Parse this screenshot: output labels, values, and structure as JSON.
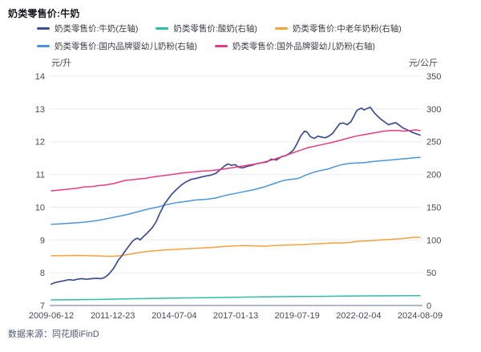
{
  "title": "奶类零售价:牛奶",
  "footer": {
    "text": "数据来源：同花顺iFinD"
  },
  "style": {
    "gridline": "#ebecf2",
    "axis_line": "#9ca1ad",
    "tick_text": "#474a58",
    "background": "#ffffff"
  },
  "chart_data": {
    "type": "line",
    "title": "奶类零售价:牛奶",
    "legend_position": "top",
    "grid": true,
    "x_axis": {
      "labels": [
        "2009-06-12",
        "2011-12-23",
        "2014-07-04",
        "2017-01-13",
        "2019-07-19",
        "2022-02-04",
        "2024-08-09"
      ],
      "min_year": 2009.45,
      "max_year": 2024.6
    },
    "y_left": {
      "unit": "元/升",
      "min": 7,
      "max": 14,
      "ticks": [
        14,
        13,
        12,
        11,
        10,
        9,
        8,
        7
      ]
    },
    "y_right": {
      "unit": "元/公斤",
      "min": 0,
      "max": 350,
      "ticks": [
        350,
        300,
        250,
        200,
        150,
        100,
        50,
        0
      ]
    },
    "series": [
      {
        "key": "milk",
        "name": "奶类零售价:牛奶(左轴)",
        "axis": "left",
        "color": "#3c4d94",
        "width": 1.7,
        "data": [
          [
            2009.45,
            7.65
          ],
          [
            2009.6,
            7.7
          ],
          [
            2009.8,
            7.73
          ],
          [
            2010,
            7.76
          ],
          [
            2010.2,
            7.79
          ],
          [
            2010.35,
            7.77
          ],
          [
            2010.5,
            7.8
          ],
          [
            2010.7,
            7.82
          ],
          [
            2010.9,
            7.8
          ],
          [
            2011.1,
            7.82
          ],
          [
            2011.3,
            7.83
          ],
          [
            2011.5,
            7.82
          ],
          [
            2011.65,
            7.86
          ],
          [
            2011.8,
            7.95
          ],
          [
            2012,
            8.12
          ],
          [
            2012.1,
            8.25
          ],
          [
            2012.2,
            8.38
          ],
          [
            2012.35,
            8.52
          ],
          [
            2012.5,
            8.68
          ],
          [
            2012.65,
            8.83
          ],
          [
            2012.8,
            8.97
          ],
          [
            2012.9,
            9.03
          ],
          [
            2013,
            9.05
          ],
          [
            2013.1,
            9.0
          ],
          [
            2013.2,
            9.08
          ],
          [
            2013.35,
            9.18
          ],
          [
            2013.5,
            9.3
          ],
          [
            2013.6,
            9.38
          ],
          [
            2013.75,
            9.55
          ],
          [
            2013.9,
            9.8
          ],
          [
            2014,
            9.95
          ],
          [
            2014.1,
            10.1
          ],
          [
            2014.25,
            10.25
          ],
          [
            2014.4,
            10.4
          ],
          [
            2014.6,
            10.55
          ],
          [
            2014.8,
            10.68
          ],
          [
            2015,
            10.78
          ],
          [
            2015.2,
            10.85
          ],
          [
            2015.4,
            10.88
          ],
          [
            2015.6,
            10.92
          ],
          [
            2015.8,
            10.95
          ],
          [
            2016,
            10.98
          ],
          [
            2016.2,
            11.03
          ],
          [
            2016.4,
            11.15
          ],
          [
            2016.55,
            11.25
          ],
          [
            2016.7,
            11.32
          ],
          [
            2016.85,
            11.28
          ],
          [
            2017,
            11.3
          ],
          [
            2017.15,
            11.22
          ],
          [
            2017.3,
            11.2
          ],
          [
            2017.5,
            11.25
          ],
          [
            2017.7,
            11.28
          ],
          [
            2017.9,
            11.33
          ],
          [
            2018.1,
            11.36
          ],
          [
            2018.3,
            11.38
          ],
          [
            2018.5,
            11.47
          ],
          [
            2018.7,
            11.44
          ],
          [
            2018.9,
            11.54
          ],
          [
            2019.1,
            11.58
          ],
          [
            2019.25,
            11.65
          ],
          [
            2019.4,
            11.75
          ],
          [
            2019.55,
            11.95
          ],
          [
            2019.7,
            12.18
          ],
          [
            2019.85,
            12.32
          ],
          [
            2019.95,
            12.3
          ],
          [
            2020.1,
            12.15
          ],
          [
            2020.25,
            12.1
          ],
          [
            2020.4,
            12.17
          ],
          [
            2020.55,
            12.14
          ],
          [
            2020.7,
            12.12
          ],
          [
            2020.85,
            12.17
          ],
          [
            2021,
            12.25
          ],
          [
            2021.15,
            12.4
          ],
          [
            2021.3,
            12.55
          ],
          [
            2021.45,
            12.57
          ],
          [
            2021.6,
            12.52
          ],
          [
            2021.75,
            12.6
          ],
          [
            2021.9,
            12.8
          ],
          [
            2022,
            12.95
          ],
          [
            2022.1,
            13.0
          ],
          [
            2022.2,
            13.02
          ],
          [
            2022.3,
            12.97
          ],
          [
            2022.45,
            13.02
          ],
          [
            2022.55,
            13.05
          ],
          [
            2022.7,
            12.9
          ],
          [
            2022.85,
            12.78
          ],
          [
            2023,
            12.68
          ],
          [
            2023.15,
            12.6
          ],
          [
            2023.3,
            12.52
          ],
          [
            2023.45,
            12.55
          ],
          [
            2023.6,
            12.58
          ],
          [
            2023.75,
            12.5
          ],
          [
            2023.9,
            12.42
          ],
          [
            2024.1,
            12.35
          ],
          [
            2024.3,
            12.28
          ],
          [
            2024.45,
            12.24
          ],
          [
            2024.6,
            12.2
          ]
        ]
      },
      {
        "key": "yogurt",
        "name": "奶类零售价:酸奶(右轴)",
        "axis": "right",
        "color": "#2ebfa5",
        "width": 1.5,
        "data": [
          [
            2009.45,
            8.6
          ],
          [
            2010.5,
            8.8
          ],
          [
            2011.5,
            9.3
          ],
          [
            2012.5,
            10.0
          ],
          [
            2013.5,
            10.8
          ],
          [
            2014.5,
            11.3
          ],
          [
            2015.5,
            11.8
          ],
          [
            2016.5,
            12.2
          ],
          [
            2017.5,
            12.8
          ],
          [
            2018.5,
            13.3
          ],
          [
            2019.5,
            13.7
          ],
          [
            2020.5,
            14.0
          ],
          [
            2021.5,
            14.3
          ],
          [
            2022.5,
            14.7
          ],
          [
            2023.5,
            14.8
          ],
          [
            2024.6,
            15.0
          ]
        ]
      },
      {
        "key": "middle-aged-powder",
        "name": "奶类零售价:中老年奶粉(右轴)",
        "axis": "right",
        "color": "#f5a13d",
        "width": 1.5,
        "data": [
          [
            2009.45,
            76
          ],
          [
            2010,
            76
          ],
          [
            2010.5,
            76.5
          ],
          [
            2011,
            76
          ],
          [
            2011.5,
            75.5
          ],
          [
            2011.9,
            75
          ],
          [
            2012.3,
            76
          ],
          [
            2012.7,
            78.5
          ],
          [
            2013.1,
            81
          ],
          [
            2013.5,
            83
          ],
          [
            2014,
            84.5
          ],
          [
            2014.5,
            85.5
          ],
          [
            2015,
            86.5
          ],
          [
            2015.5,
            87.5
          ],
          [
            2016,
            88.5
          ],
          [
            2016.5,
            90
          ],
          [
            2017,
            91
          ],
          [
            2017.4,
            91.5
          ],
          [
            2017.8,
            91
          ],
          [
            2018.2,
            90.5
          ],
          [
            2018.6,
            91.5
          ],
          [
            2019,
            92
          ],
          [
            2019.4,
            92.5
          ],
          [
            2019.8,
            93
          ],
          [
            2020.2,
            94
          ],
          [
            2020.6,
            94.5
          ],
          [
            2021,
            95.5
          ],
          [
            2021.4,
            95.5
          ],
          [
            2021.8,
            96.5
          ],
          [
            2022.05,
            98
          ],
          [
            2022.3,
            98.5
          ],
          [
            2022.6,
            99
          ],
          [
            2023,
            100
          ],
          [
            2023.4,
            101
          ],
          [
            2023.8,
            102
          ],
          [
            2024.1,
            103
          ],
          [
            2024.35,
            104
          ],
          [
            2024.6,
            104
          ]
        ]
      },
      {
        "key": "domestic-infant-powder",
        "name": "奶类零售价:国内品牌婴幼儿奶粉(右轴)",
        "axis": "right",
        "color": "#4a96db",
        "width": 1.5,
        "data": [
          [
            2009.45,
            124
          ],
          [
            2009.8,
            124.5
          ],
          [
            2010.2,
            125.5
          ],
          [
            2010.6,
            126.5
          ],
          [
            2011,
            128
          ],
          [
            2011.4,
            130
          ],
          [
            2011.8,
            133
          ],
          [
            2012.2,
            136
          ],
          [
            2012.6,
            139
          ],
          [
            2013,
            143
          ],
          [
            2013.4,
            147
          ],
          [
            2013.8,
            150
          ],
          [
            2014.2,
            154
          ],
          [
            2014.6,
            157
          ],
          [
            2015,
            159
          ],
          [
            2015.4,
            161
          ],
          [
            2015.8,
            162
          ],
          [
            2016.2,
            164
          ],
          [
            2016.6,
            168
          ],
          [
            2017,
            171
          ],
          [
            2017.4,
            174
          ],
          [
            2017.8,
            177
          ],
          [
            2018.2,
            181
          ],
          [
            2018.6,
            186
          ],
          [
            2019,
            191
          ],
          [
            2019.3,
            192.5
          ],
          [
            2019.6,
            194
          ],
          [
            2019.9,
            199
          ],
          [
            2020.2,
            203
          ],
          [
            2020.5,
            206
          ],
          [
            2020.8,
            208
          ],
          [
            2021.1,
            212
          ],
          [
            2021.4,
            215
          ],
          [
            2021.7,
            217
          ],
          [
            2022,
            217.5
          ],
          [
            2022.3,
            218
          ],
          [
            2022.6,
            219.5
          ],
          [
            2022.9,
            220.5
          ],
          [
            2023.2,
            221.5
          ],
          [
            2023.5,
            222.5
          ],
          [
            2023.8,
            223.5
          ],
          [
            2024.1,
            224.5
          ],
          [
            2024.35,
            225.5
          ],
          [
            2024.6,
            226
          ]
        ]
      },
      {
        "key": "foreign-infant-powder",
        "name": "奶类零售价:国外品牌婴幼儿奶粉(右轴)",
        "axis": "right",
        "color": "#e63c82",
        "width": 1.5,
        "data": [
          [
            2009.45,
            175
          ],
          [
            2010,
            177
          ],
          [
            2010.5,
            179
          ],
          [
            2010.8,
            181
          ],
          [
            2011.1,
            181.5
          ],
          [
            2011.4,
            183
          ],
          [
            2011.7,
            184
          ],
          [
            2012,
            186
          ],
          [
            2012.2,
            188
          ],
          [
            2012.5,
            191
          ],
          [
            2012.8,
            192
          ],
          [
            2013,
            193
          ],
          [
            2013.3,
            194
          ],
          [
            2013.6,
            196
          ],
          [
            2014,
            198
          ],
          [
            2014.4,
            200
          ],
          [
            2014.8,
            202
          ],
          [
            2015.2,
            203.5
          ],
          [
            2015.6,
            205
          ],
          [
            2016,
            206
          ],
          [
            2016.5,
            208
          ],
          [
            2017,
            211
          ],
          [
            2017.5,
            214
          ],
          [
            2018,
            217
          ],
          [
            2018.5,
            222
          ],
          [
            2019,
            228
          ],
          [
            2019.3,
            232
          ],
          [
            2019.6,
            236
          ],
          [
            2020,
            241
          ],
          [
            2020.5,
            245
          ],
          [
            2021,
            249
          ],
          [
            2021.3,
            252
          ],
          [
            2021.6,
            255
          ],
          [
            2021.9,
            258
          ],
          [
            2022.2,
            260
          ],
          [
            2022.5,
            262
          ],
          [
            2022.8,
            264
          ],
          [
            2023.1,
            266
          ],
          [
            2023.4,
            267
          ],
          [
            2023.7,
            267
          ],
          [
            2023.95,
            266
          ],
          [
            2024.2,
            267
          ],
          [
            2024.4,
            268
          ],
          [
            2024.6,
            267
          ]
        ]
      }
    ]
  }
}
